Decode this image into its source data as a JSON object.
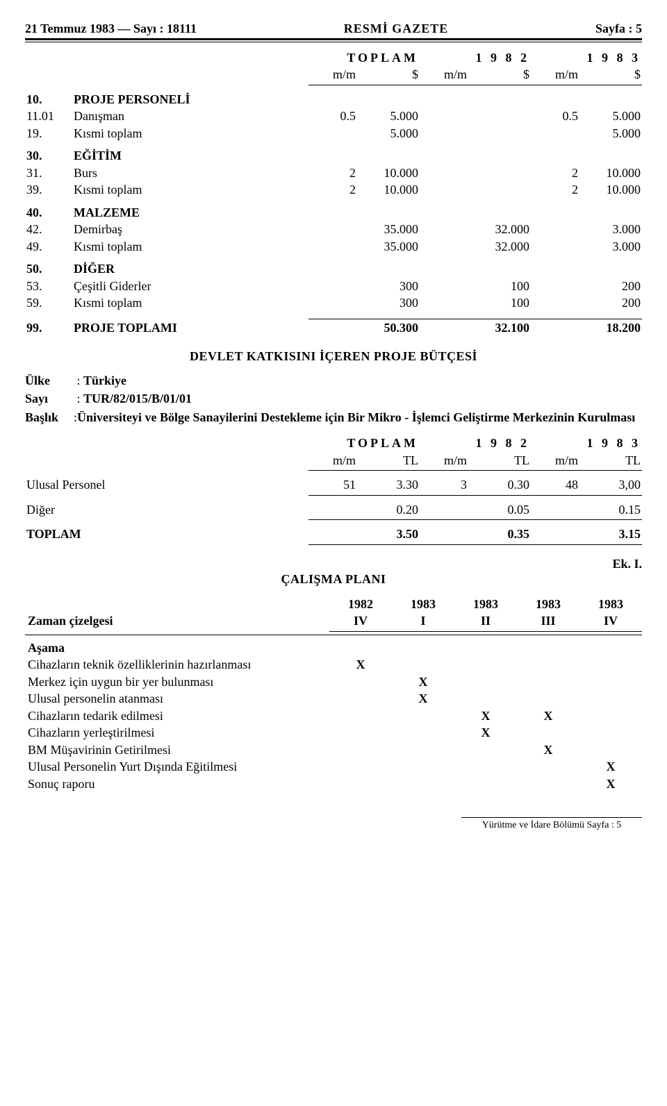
{
  "header": {
    "left": "21 Temmuz 1983 — Sayı : 18111",
    "mid": "RESMİ GAZETE",
    "right": "Sayfa : 5"
  },
  "budget1": {
    "cols": {
      "group_total": "TOPLAM",
      "group_1982": "1 9 8 2",
      "group_1983": "1 9 8 3",
      "mm": "m/m",
      "cur": "$"
    },
    "sections": [
      {
        "code": "10.",
        "title": "PROJE PERSONELİ",
        "rows": [
          {
            "code": "11.01",
            "label": "Danışman",
            "t_mm": "0.5",
            "t_v": "5.000",
            "a_mm": "",
            "a_v": "",
            "b_mm": "0.5",
            "b_v": "5.000"
          },
          {
            "code": "19.",
            "label": "Kısmi toplam",
            "t_mm": "",
            "t_v": "5.000",
            "a_mm": "",
            "a_v": "",
            "b_mm": "",
            "b_v": "5.000"
          }
        ]
      },
      {
        "code": "30.",
        "title": "EĞİTİM",
        "rows": [
          {
            "code": "31.",
            "label": "Burs",
            "t_mm": "2",
            "t_v": "10.000",
            "a_mm": "",
            "a_v": "",
            "b_mm": "2",
            "b_v": "10.000"
          },
          {
            "code": "39.",
            "label": "Kısmi toplam",
            "t_mm": "2",
            "t_v": "10.000",
            "a_mm": "",
            "a_v": "",
            "b_mm": "2",
            "b_v": "10.000"
          }
        ]
      },
      {
        "code": "40.",
        "title": "MALZEME",
        "rows": [
          {
            "code": "42.",
            "label": "Demirbaş",
            "t_mm": "",
            "t_v": "35.000",
            "a_mm": "",
            "a_v": "32.000",
            "b_mm": "",
            "b_v": "3.000"
          },
          {
            "code": "49.",
            "label": "Kısmi toplam",
            "t_mm": "",
            "t_v": "35.000",
            "a_mm": "",
            "a_v": "32.000",
            "b_mm": "",
            "b_v": "3.000"
          }
        ]
      },
      {
        "code": "50.",
        "title": "DİĞER",
        "rows": [
          {
            "code": "53.",
            "label": "Çeşitli Giderler",
            "t_mm": "",
            "t_v": "300",
            "a_mm": "",
            "a_v": "100",
            "b_mm": "",
            "b_v": "200"
          },
          {
            "code": "59.",
            "label": "Kısmi toplam",
            "t_mm": "",
            "t_v": "300",
            "a_mm": "",
            "a_v": "100",
            "b_mm": "",
            "b_v": "200"
          }
        ]
      }
    ],
    "grand": {
      "code": "99.",
      "label": "PROJE TOPLAMI",
      "t_v": "50.300",
      "a_v": "32.100",
      "b_v": "18.200"
    }
  },
  "title2": "DEVLET KATKISINI İÇEREN PROJE BÜTÇESİ",
  "meta": {
    "ulke_label": "Ülke",
    "ulke": "Türkiye",
    "sayi_label": "Sayı",
    "sayi": "TUR/82/015/B/01/01",
    "baslik_label": "Başlık",
    "baslik": "Üniversiteyi ve Bölge Sanayilerini Destekleme için Bir Mikro - İşlemci Geliştirme Merkezinin Kurulması"
  },
  "budget2": {
    "cols": {
      "group_total": "TOPLAM",
      "group_1982": "1 9 8 2",
      "group_1983": "1 9 8 3",
      "mm": "m/m",
      "cur": "TL"
    },
    "rows": [
      {
        "label": "Ulusal Personel",
        "t_mm": "51",
        "t_v": "3.30",
        "a_mm": "3",
        "a_v": "0.30",
        "b_mm": "48",
        "b_v": "3,00"
      },
      {
        "label": "Diğer",
        "t_mm": "",
        "t_v": "0.20",
        "a_mm": "",
        "a_v": "0.05",
        "b_mm": "",
        "b_v": "0.15"
      },
      {
        "label": "TOPLAM",
        "t_mm": "",
        "t_v": "3.50",
        "a_mm": "",
        "a_v": "0.35",
        "b_mm": "",
        "b_v": "3.15",
        "bold": true
      }
    ]
  },
  "ek": "Ek. I.",
  "plan": {
    "title": "ÇALIŞMA PLANI",
    "row_label": "Zaman çizelgesi",
    "years": [
      "1982",
      "1983",
      "1983",
      "1983",
      "1983"
    ],
    "quarters": [
      "IV",
      "I",
      "II",
      "III",
      "IV"
    ],
    "asama": "Aşama",
    "items": [
      {
        "label": "Cihazların teknik özelliklerinin hazırlanması",
        "marks": [
          "X",
          "",
          "",
          "",
          ""
        ]
      },
      {
        "label": "Merkez için uygun bir yer bulunması",
        "marks": [
          "",
          "X",
          "",
          "",
          ""
        ]
      },
      {
        "label": "Ulusal   personelin atanması",
        "marks": [
          "",
          "X",
          "",
          "",
          ""
        ]
      },
      {
        "label": "Cihazların tedarik edilmesi",
        "marks": [
          "",
          "",
          "X",
          "X",
          ""
        ]
      },
      {
        "label": "Cihazların yerleştirilmesi",
        "marks": [
          "",
          "",
          "X",
          "",
          ""
        ]
      },
      {
        "label": "BM Müşavirinin Getirilmesi",
        "marks": [
          "",
          "",
          "",
          "X",
          ""
        ]
      },
      {
        "label": "Ulusal Personelin Yurt Dışında Eğitilmesi",
        "marks": [
          "",
          "",
          "",
          "",
          "X"
        ]
      },
      {
        "label": "Sonuç raporu",
        "marks": [
          "",
          "",
          "",
          "",
          "X"
        ]
      }
    ]
  },
  "footer": "Yürütme ve İdare Bölümü Sayfa : 5"
}
